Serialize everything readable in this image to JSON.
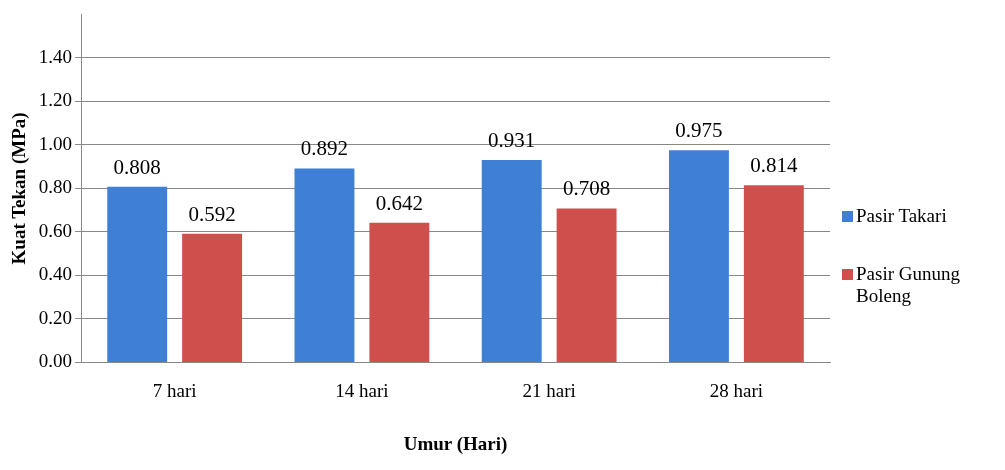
{
  "chart_data": {
    "type": "bar",
    "xlabel": "Umur (Hari)",
    "ylabel": "Kuat Tekan (MPa)",
    "categories": [
      "7 hari",
      "14 hari",
      "21 hari",
      "28 hari"
    ],
    "series": [
      {
        "name": "Pasir Takari",
        "color": "#3f7fd6",
        "values": [
          0.808,
          0.892,
          0.931,
          0.975
        ]
      },
      {
        "name": "Pasir Gunung Boleng",
        "color": "#cf4f4c",
        "values": [
          0.592,
          0.642,
          0.708,
          0.814
        ]
      }
    ],
    "ylim": [
      0,
      1.6
    ],
    "yticks": [
      {
        "value": 0,
        "label": "0.00"
      },
      {
        "value": 0.2,
        "label": "0.20"
      },
      {
        "value": 0.4,
        "label": "0.40"
      },
      {
        "value": 0.6,
        "label": "0.60"
      },
      {
        "value": 0.8,
        "label": "0.80"
      },
      {
        "value": 1.0,
        "label": "1.00"
      },
      {
        "value": 1.2,
        "label": "1.20"
      },
      {
        "value": 1.4,
        "label": "1.40"
      }
    ],
    "grid": "y",
    "legend": "right",
    "data_labels": true
  }
}
